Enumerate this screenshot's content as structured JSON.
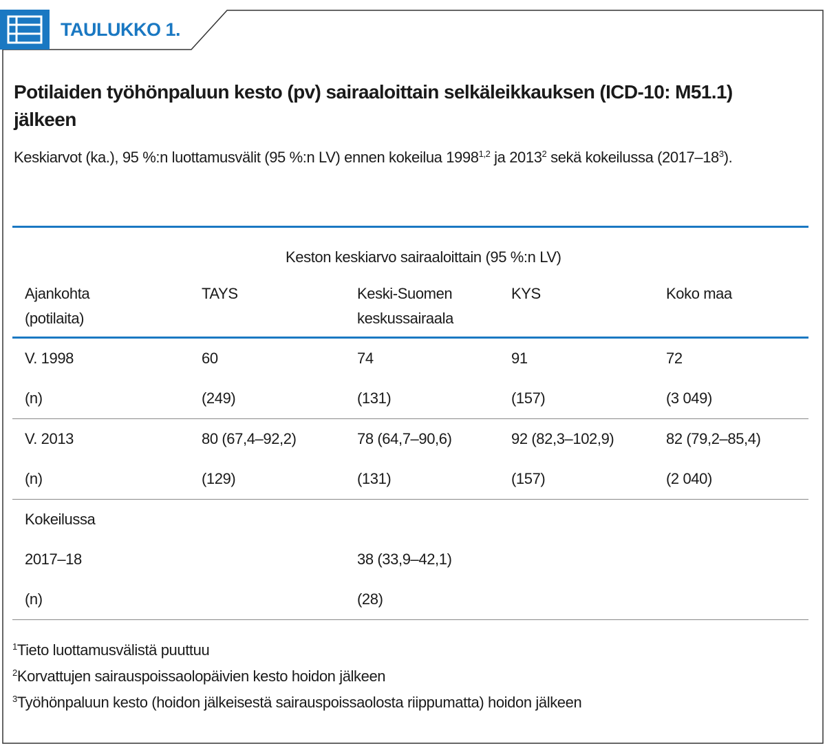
{
  "header": {
    "label": "TAULUKKO 1."
  },
  "title": "Potilaiden työhönpaluun kesto (pv) sairaaloittain selkäleikkauksen (ICD-10: M51.1) jälkeen",
  "subtitle": [
    {
      "text": "Keskiarvot (ka.), 95 %:n luottamusvälit (95 %:n LV) ennen kokeilua 1998"
    },
    {
      "sup": "1,2"
    },
    {
      "text": " ja 2013"
    },
    {
      "sup": "2"
    },
    {
      "text": " sekä kokeilussa (2017–18"
    },
    {
      "sup": "3"
    },
    {
      "text": ")."
    }
  ],
  "table": {
    "group_header": "Keston keskiarvo sairaaloittain (95 %:n LV)",
    "columns": [
      "Ajankohta (potilaita)",
      "TAYS",
      "Keski-Suomen keskussairaala",
      "KYS",
      "Koko maa"
    ],
    "groups": [
      [
        [
          "V. 1998",
          "60",
          "74",
          "91",
          "72"
        ],
        [
          "(n)",
          "(249)",
          "(131)",
          "(157)",
          "(3 049)"
        ]
      ],
      [
        [
          "V. 2013",
          "80 (67,4–92,2)",
          "78 (64,7–90,6)",
          "92 (82,3–102,9)",
          "82 (79,2–85,4)"
        ],
        [
          "(n)",
          "(129)",
          "(131)",
          "(157)",
          "(2 040)"
        ]
      ],
      [
        [
          "Kokeilussa",
          null,
          null,
          null,
          null
        ],
        [
          "2017–18",
          null,
          "38 (33,9–42,1)",
          null,
          null
        ],
        [
          "(n)",
          null,
          "(28)",
          null,
          null
        ]
      ]
    ]
  },
  "footnotes": [
    {
      "mark": "1",
      "text": "Tieto luottamusvälistä puuttuu"
    },
    {
      "mark": "2",
      "text": "Korvattujen sairauspoissaolopäivien kesto hoidon jälkeen"
    },
    {
      "mark": "3",
      "text": "Työhönpaluun kesto (hoidon jälkeisestä sairauspoissaolosta riippumatta) hoidon jälkeen"
    }
  ]
}
